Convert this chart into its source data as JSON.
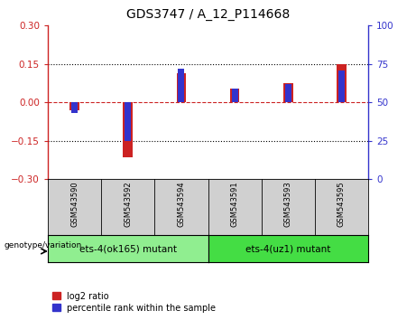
{
  "title": "GDS3747 / A_12_P114668",
  "samples": [
    "GSM543590",
    "GSM543592",
    "GSM543594",
    "GSM543591",
    "GSM543593",
    "GSM543595"
  ],
  "log2_ratio": [
    -0.03,
    -0.215,
    0.115,
    0.055,
    0.075,
    0.148
  ],
  "percentile_rank": [
    43,
    25,
    72,
    59,
    62,
    71
  ],
  "ylim_left": [
    -0.3,
    0.3
  ],
  "ylim_right": [
    0,
    100
  ],
  "yticks_left": [
    -0.3,
    -0.15,
    0,
    0.15,
    0.3
  ],
  "yticks_right": [
    0,
    25,
    50,
    75,
    100
  ],
  "red_color": "#cc2222",
  "blue_color": "#3333cc",
  "groups": [
    {
      "label": "ets-4(ok165) mutant",
      "color": "#90ee90"
    },
    {
      "label": "ets-4(uz1) mutant",
      "color": "#44dd44"
    }
  ],
  "group_label": "genotype/variation",
  "legend_red": "log2 ratio",
  "legend_blue": "percentile rank within the sample",
  "sample_bg": "#d0d0d0",
  "group1_color": "#90ee90",
  "group2_color": "#44dd44"
}
